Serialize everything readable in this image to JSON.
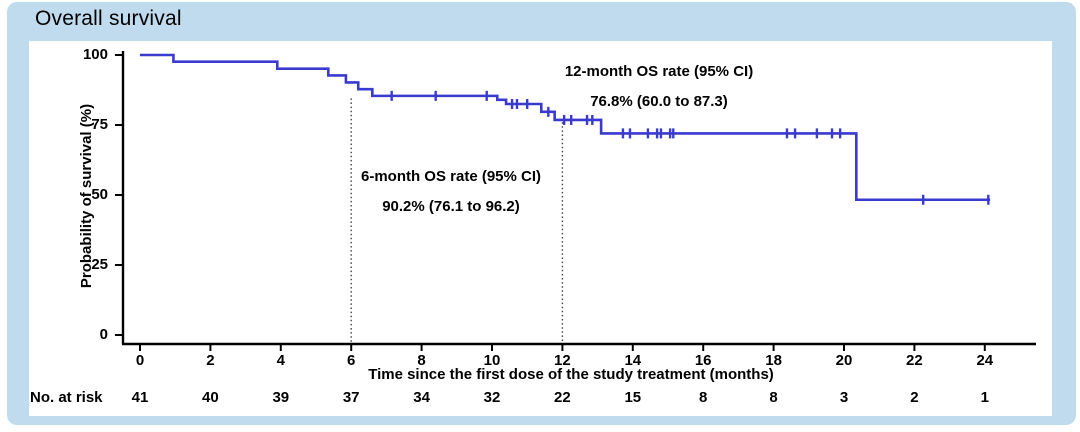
{
  "card": {
    "title": "Overall survival",
    "background_color": "#c1dbee"
  },
  "risk_table": {
    "label": "No. at risk",
    "times": [
      0,
      2,
      4,
      6,
      8,
      10,
      12,
      14,
      16,
      18,
      20,
      22,
      24
    ],
    "values": [
      41,
      40,
      39,
      37,
      34,
      32,
      22,
      15,
      8,
      8,
      3,
      2,
      1
    ]
  },
  "chart_data": {
    "type": "line",
    "subtype": "kaplan-meier-step",
    "title": "Overall survival",
    "xlabel": "Time since the first dose of the study treatment (months)",
    "ylabel": "Probability of survival (%)",
    "xlim": [
      0,
      25.4
    ],
    "ylim": [
      0,
      100
    ],
    "x_ticks": [
      0,
      2,
      4,
      6,
      8,
      10,
      12,
      14,
      16,
      18,
      20,
      22,
      24
    ],
    "y_ticks": [
      0,
      25,
      50,
      75,
      100
    ],
    "grid": false,
    "legend": false,
    "series_color": "#3a3ad0",
    "axis_color": "#000000",
    "reference_line_color": "#444444",
    "steps": [
      {
        "t": 0.0,
        "v": 100.0
      },
      {
        "t": 0.95,
        "v": 97.6
      },
      {
        "t": 3.9,
        "v": 95.1
      },
      {
        "t": 5.35,
        "v": 92.7
      },
      {
        "t": 5.85,
        "v": 90.2
      },
      {
        "t": 6.2,
        "v": 87.8
      },
      {
        "t": 6.6,
        "v": 85.4
      },
      {
        "t": 10.15,
        "v": 84.0
      },
      {
        "t": 10.4,
        "v": 82.5
      },
      {
        "t": 11.4,
        "v": 79.7
      },
      {
        "t": 11.78,
        "v": 76.8
      },
      {
        "t": 13.1,
        "v": 72.0
      },
      {
        "t": 20.35,
        "v": 48.3
      }
    ],
    "curve_end_t": 24.15,
    "censors": [
      {
        "t": 7.15,
        "v": 85.4
      },
      {
        "t": 8.4,
        "v": 85.4
      },
      {
        "t": 9.85,
        "v": 85.4
      },
      {
        "t": 10.57,
        "v": 82.5
      },
      {
        "t": 10.71,
        "v": 82.5
      },
      {
        "t": 11.0,
        "v": 82.5
      },
      {
        "t": 11.6,
        "v": 79.7
      },
      {
        "t": 12.05,
        "v": 76.8
      },
      {
        "t": 12.25,
        "v": 76.8
      },
      {
        "t": 12.7,
        "v": 76.8
      },
      {
        "t": 12.85,
        "v": 76.8
      },
      {
        "t": 13.72,
        "v": 72.0
      },
      {
        "t": 13.92,
        "v": 72.0
      },
      {
        "t": 14.43,
        "v": 72.0
      },
      {
        "t": 14.69,
        "v": 72.0
      },
      {
        "t": 14.8,
        "v": 72.0
      },
      {
        "t": 15.06,
        "v": 72.0
      },
      {
        "t": 15.15,
        "v": 72.0
      },
      {
        "t": 18.38,
        "v": 72.0
      },
      {
        "t": 18.61,
        "v": 72.0
      },
      {
        "t": 19.23,
        "v": 72.0
      },
      {
        "t": 19.66,
        "v": 72.0
      },
      {
        "t": 19.89,
        "v": 72.0
      },
      {
        "t": 22.25,
        "v": 48.3
      },
      {
        "t": 24.1,
        "v": 48.3
      }
    ],
    "reference_lines": [
      {
        "t": 6,
        "v_top": 84.5
      },
      {
        "t": 12,
        "v_top": 76.0
      }
    ],
    "annotations": [
      {
        "id": "os-6",
        "line1": "6-month OS rate (95% CI)",
        "line2": "90.2% (76.1 to 96.2)"
      },
      {
        "id": "os-12",
        "line1": "12-month OS rate (95% CI)",
        "line2": "76.8% (60.0 to 87.3)"
      }
    ]
  }
}
